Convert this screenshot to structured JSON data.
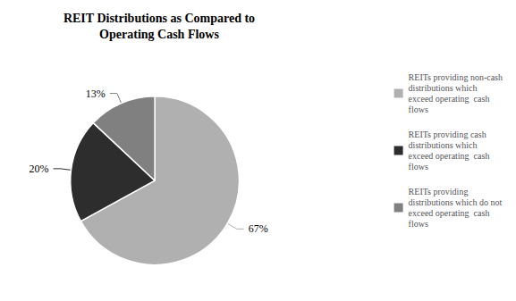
{
  "chart_data": {
    "type": "pie",
    "title": "REIT Distributions as Compared to\nOperating Cash Flows",
    "categories": [
      "REITs providing non-cash\ndistributions which\nexceed operating  cash\nflows",
      "REITs providing cash\ndistributions which\nexceed operating  cash\nflows",
      "REITs providing\ndistributions which do not\nexceed operating  cash\nflows"
    ],
    "values": [
      67,
      20,
      13
    ],
    "value_labels": [
      "67%",
      "20%",
      "13%"
    ],
    "colors": [
      "#b0b0b0",
      "#2d2d2d",
      "#808080"
    ],
    "data_labels": true,
    "legend": "right"
  }
}
